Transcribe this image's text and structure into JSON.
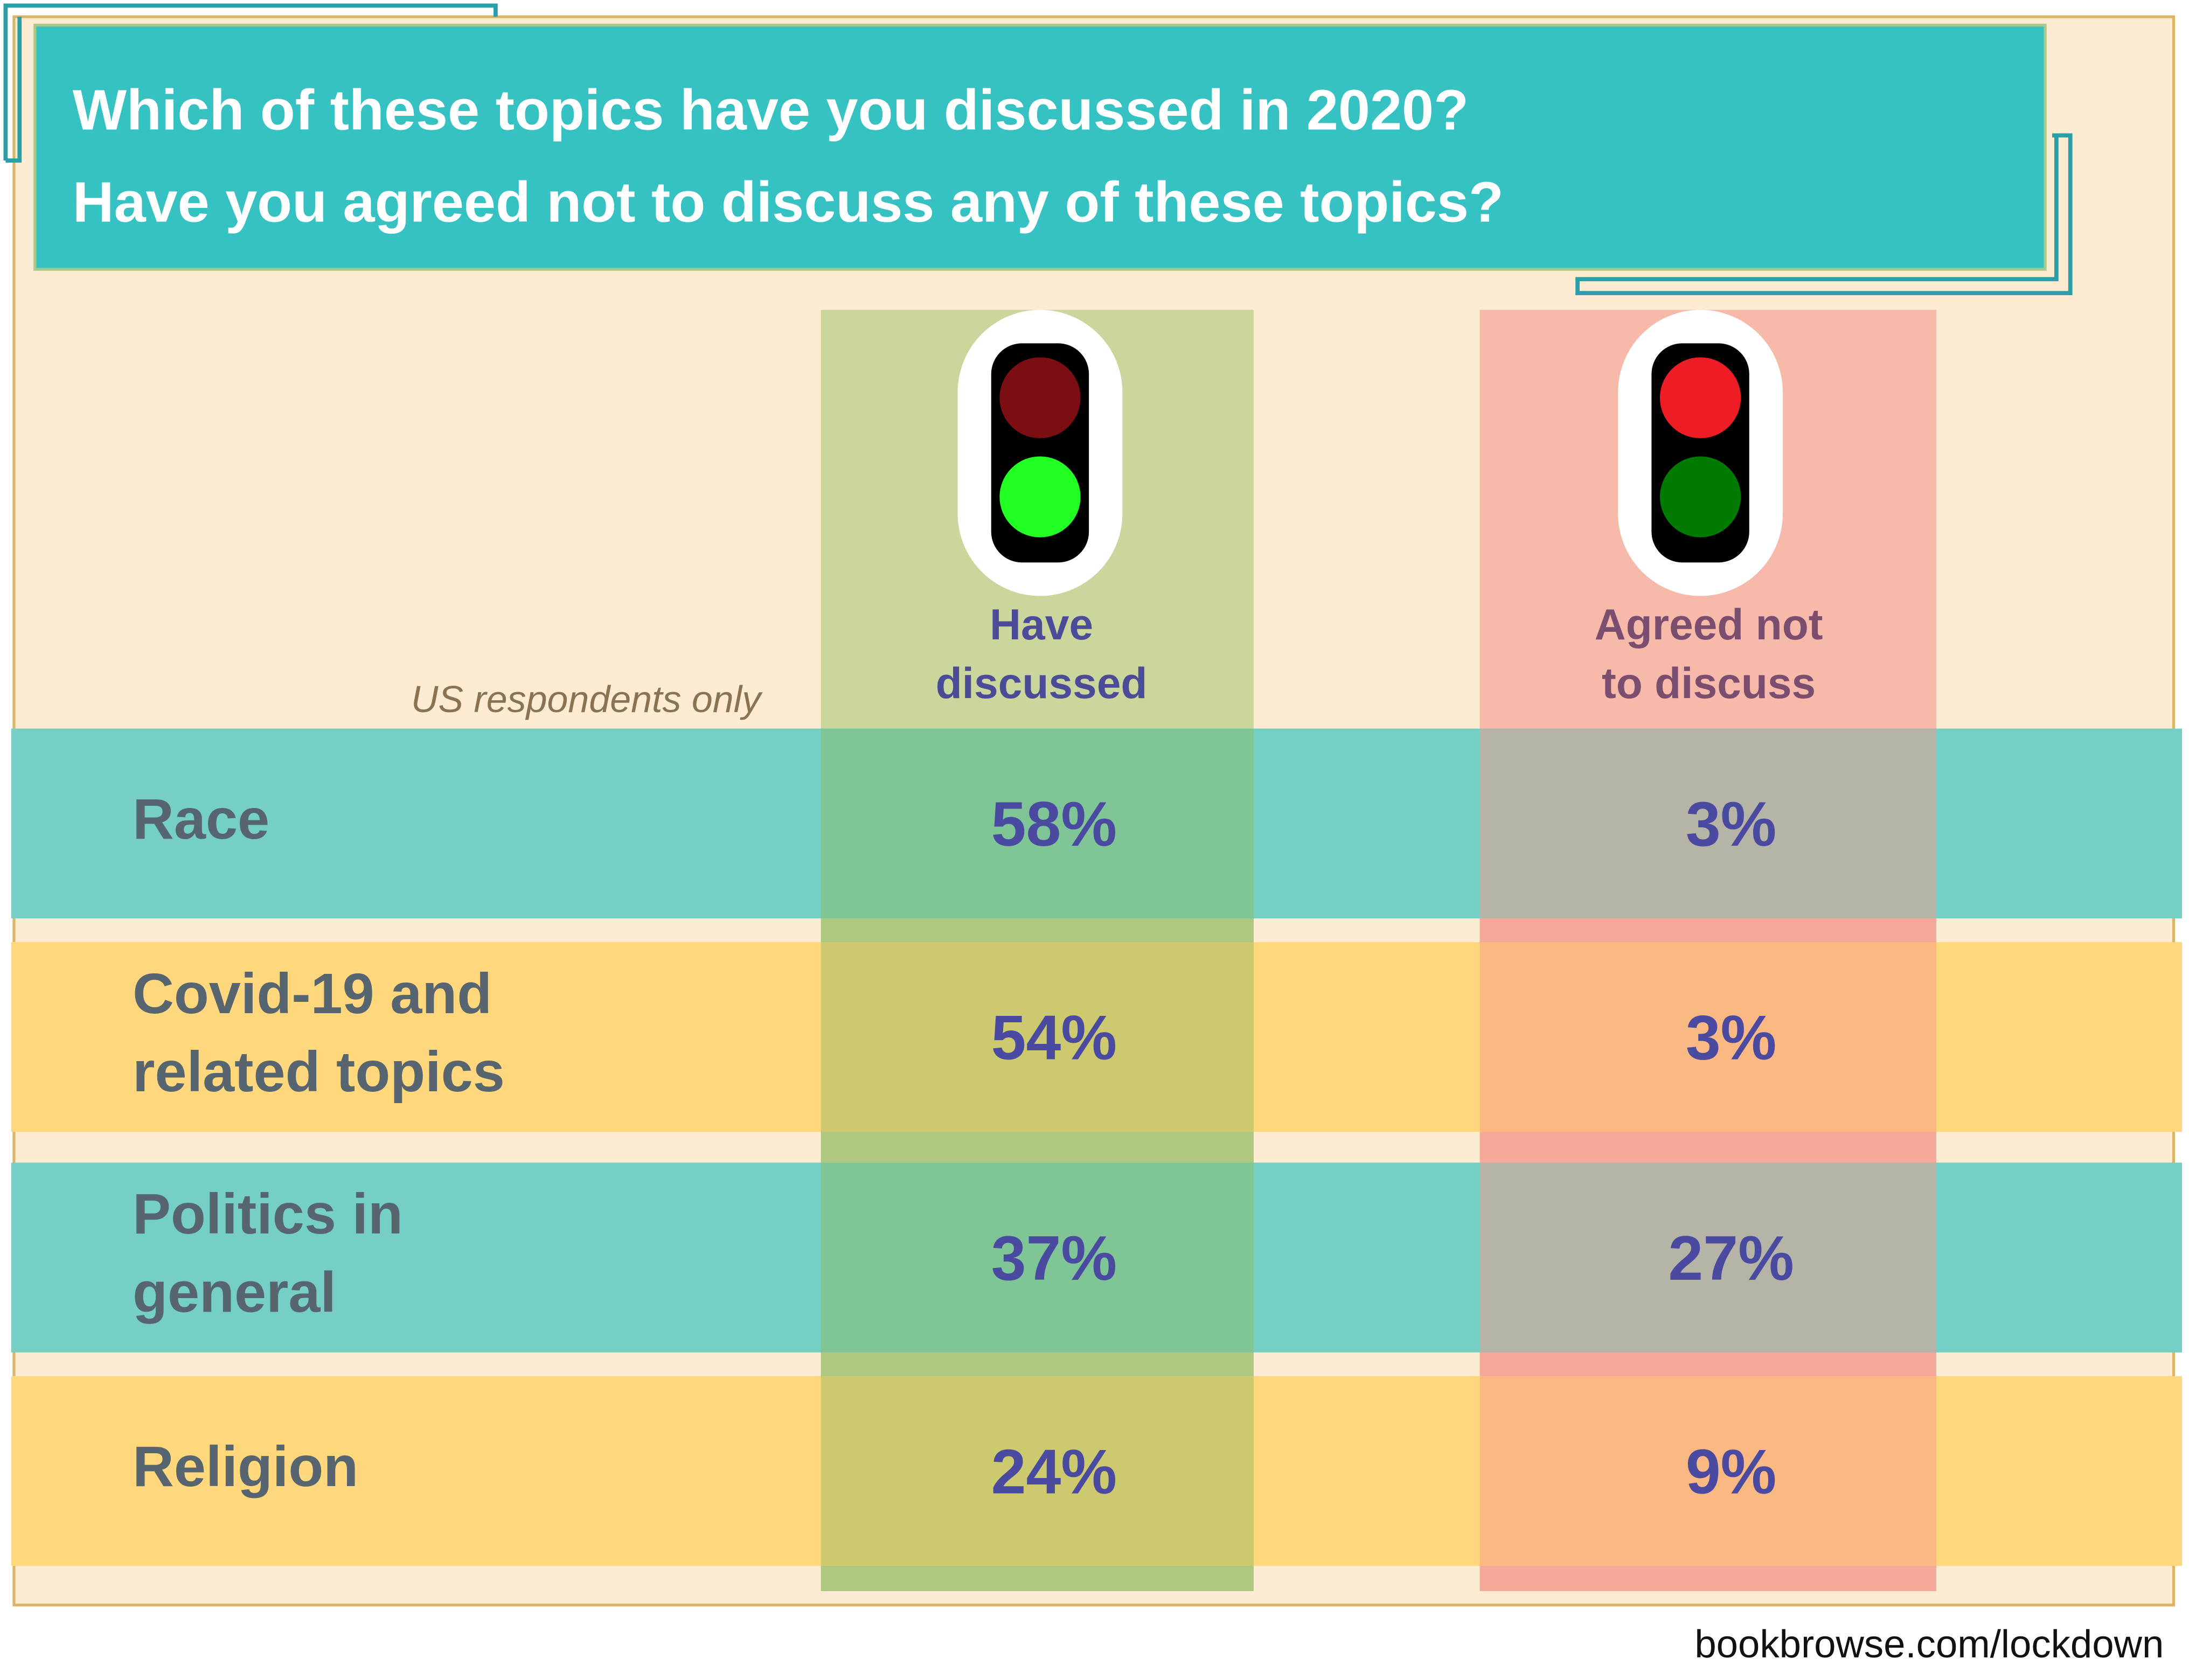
{
  "header": {
    "title": [
      "Which of these topics have you discussed in 2020?",
      "Have you agreed not to discuss any of these topics?"
    ]
  },
  "note": "US respondents only",
  "columns": [
    [
      "Have",
      "discussed"
    ],
    [
      "Agreed not",
      "to discuss"
    ]
  ],
  "table": {
    "rows": [
      {
        "label": [
          "Race"
        ],
        "cells": [
          "58%",
          "3%"
        ]
      },
      {
        "label": [
          "Covid-19 and",
          "related topics"
        ],
        "cells": [
          "54%",
          "3%"
        ]
      },
      {
        "label": [
          "Politics in",
          "general"
        ],
        "cells": [
          "37%",
          "27%"
        ]
      },
      {
        "label": [
          "Religion"
        ],
        "cells": [
          "24%",
          "9%"
        ]
      }
    ]
  },
  "footer": "bookbrowse.com/lockdown"
}
